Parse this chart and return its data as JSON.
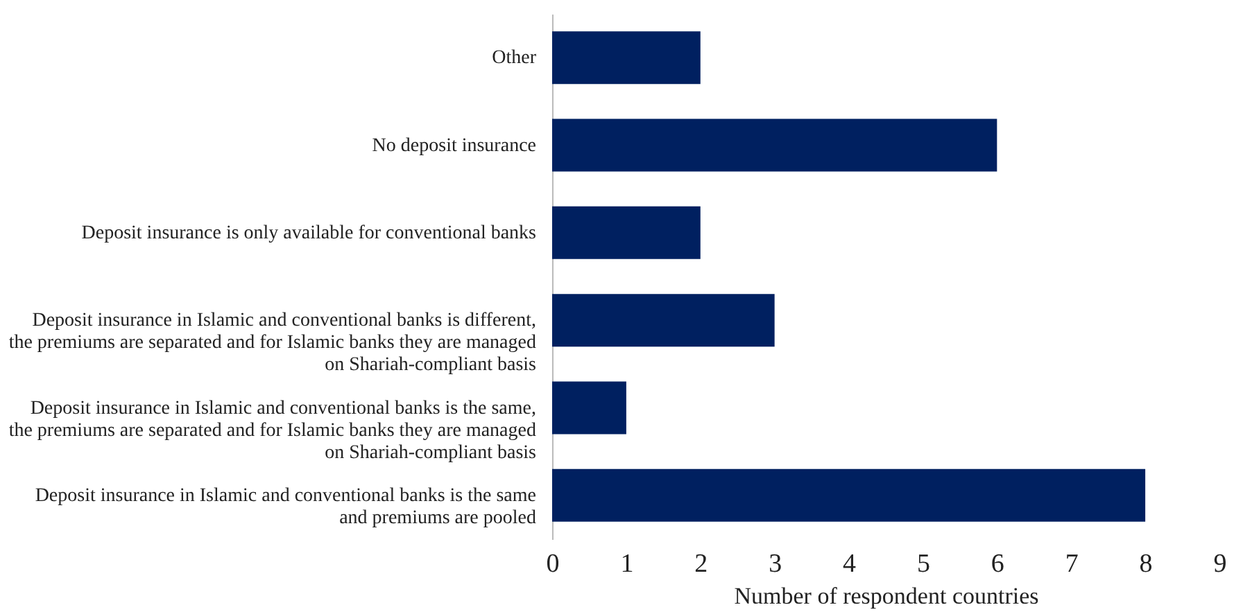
{
  "chart_data": {
    "type": "bar",
    "orientation": "horizontal",
    "xlabel": "Number of respondent countries",
    "categories": [
      "Other",
      "No deposit insurance",
      "Deposit insurance is only available for conventional banks",
      "Deposit insurance in Islamic and conventional banks is different,\nthe premiums are separated and for Islamic banks they are managed\non Shariah-compliant basis",
      "Deposit insurance in Islamic and conventional banks is the same,\nthe premiums are separated and for Islamic banks they are managed\non Shariah-compliant basis",
      "Deposit insurance in Islamic and conventional banks is the same\nand premiums are pooled"
    ],
    "values": [
      2,
      6,
      2,
      3,
      1,
      8
    ],
    "color": "#002060",
    "xlim": [
      0,
      9
    ],
    "xticks": [
      0,
      1,
      2,
      3,
      4,
      5,
      6,
      7,
      8,
      9
    ],
    "grid": false
  }
}
